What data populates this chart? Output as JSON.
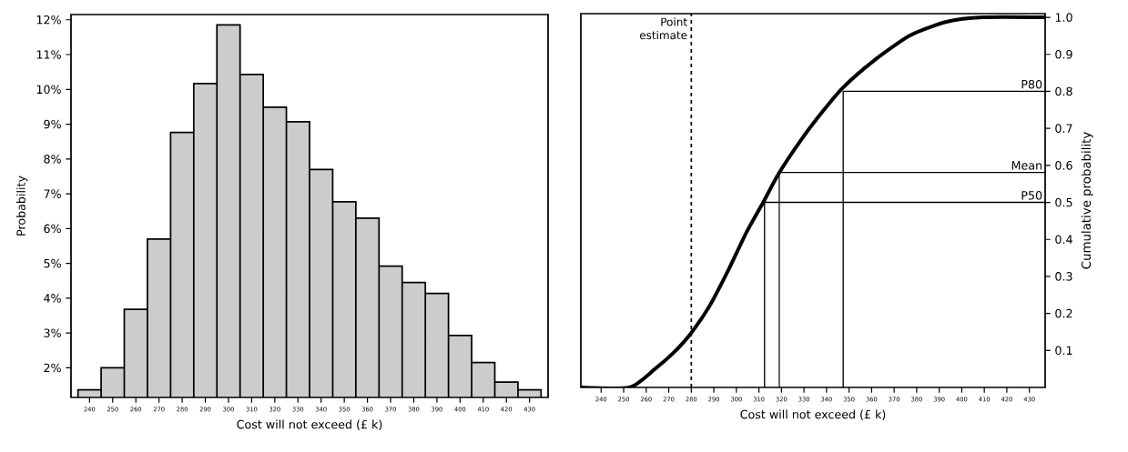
{
  "chart_data": [
    {
      "type": "histogram",
      "xlabel": "Cost will not exceed (£ k)",
      "ylabel": "Probability",
      "color": "#cccccc",
      "bins": [
        235,
        245,
        255,
        265,
        275,
        285,
        295,
        305,
        315,
        325,
        335,
        345,
        355,
        365,
        375,
        385,
        395,
        405,
        415,
        425,
        435
      ],
      "values": [
        1.37,
        2.0,
        3.68,
        5.7,
        8.76,
        10.17,
        11.85,
        10.43,
        9.49,
        9.07,
        7.7,
        6.77,
        6.3,
        4.92,
        4.45,
        4.14,
        2.93,
        2.15,
        1.59,
        1.37
      ],
      "xlim": [
        232,
        438
      ],
      "ylim": [
        1.15,
        12.15
      ],
      "xticks": [
        240,
        250,
        260,
        270,
        280,
        290,
        300,
        310,
        320,
        330,
        340,
        350,
        360,
        370,
        380,
        390,
        400,
        410,
        420,
        430
      ],
      "yticks": [
        {
          "value": 2,
          "label": "2%"
        },
        {
          "value": 3,
          "label": "3%"
        },
        {
          "value": 4,
          "label": "4%"
        },
        {
          "value": 5,
          "label": "5%"
        },
        {
          "value": 6,
          "label": "6%"
        },
        {
          "value": 7,
          "label": "7%"
        },
        {
          "value": 8,
          "label": "8%"
        },
        {
          "value": 9,
          "label": "9%"
        },
        {
          "value": 10,
          "label": "10%"
        },
        {
          "value": 11,
          "label": "11%"
        },
        {
          "value": 12,
          "label": "12%"
        }
      ]
    },
    {
      "type": "line",
      "xlabel": "Cost will not exceed (£ k)",
      "ylabel": "Cumulative probability",
      "series": [
        {
          "color": "#000000",
          "line_style": "solid",
          "x": [
            231,
            252.6,
            263.9,
            272,
            279.3,
            288.1,
            296.2,
            304.3,
            311.9,
            318.8,
            328.5,
            338.2,
            347.1,
            360.8,
            377,
            393.2,
            409.3,
            437
          ],
          "values": [
            0,
            0,
            0.05,
            0.093,
            0.142,
            0.22,
            0.314,
            0.417,
            0.5,
            0.578,
            0.667,
            0.745,
            0.809,
            0.882,
            0.951,
            0.988,
            1.0,
            1.0
          ]
        },
        {
          "color": "#000000",
          "line_style": "solid",
          "x": [
            312.5,
            312.5,
            437
          ],
          "values": [
            0,
            0.5,
            0.5
          ]
        },
        {
          "color": "#000000",
          "line_style": "solid",
          "x": [
            319,
            319,
            437
          ],
          "values": [
            0,
            0.581,
            0.581
          ]
        },
        {
          "color": "#000000",
          "line_style": "solid",
          "x": [
            347.4,
            347.4,
            437
          ],
          "values": [
            0,
            0.8,
            0.8
          ]
        }
      ],
      "ref_lines": [
        {
          "axis": "x",
          "value": 280,
          "label": "Point estimate",
          "color": "#000000",
          "line_style": "dashed"
        }
      ],
      "annotations": [
        {
          "text": "P80",
          "y": 0.8
        },
        {
          "text": "Mean",
          "y": 0.581
        },
        {
          "text": "P50",
          "y": 0.5
        }
      ],
      "xlim": [
        231,
        437
      ],
      "ylim": [
        0,
        1.01
      ],
      "xticks": [
        240,
        250,
        260,
        270,
        280,
        290,
        300,
        310,
        320,
        330,
        340,
        350,
        360,
        370,
        380,
        390,
        400,
        410,
        420,
        430
      ],
      "yticks": [
        0.1,
        0.2,
        0.3,
        0.4,
        0.5,
        0.6,
        0.7,
        0.8,
        0.9,
        {
          "value": 1,
          "label": "1.0"
        }
      ]
    }
  ]
}
